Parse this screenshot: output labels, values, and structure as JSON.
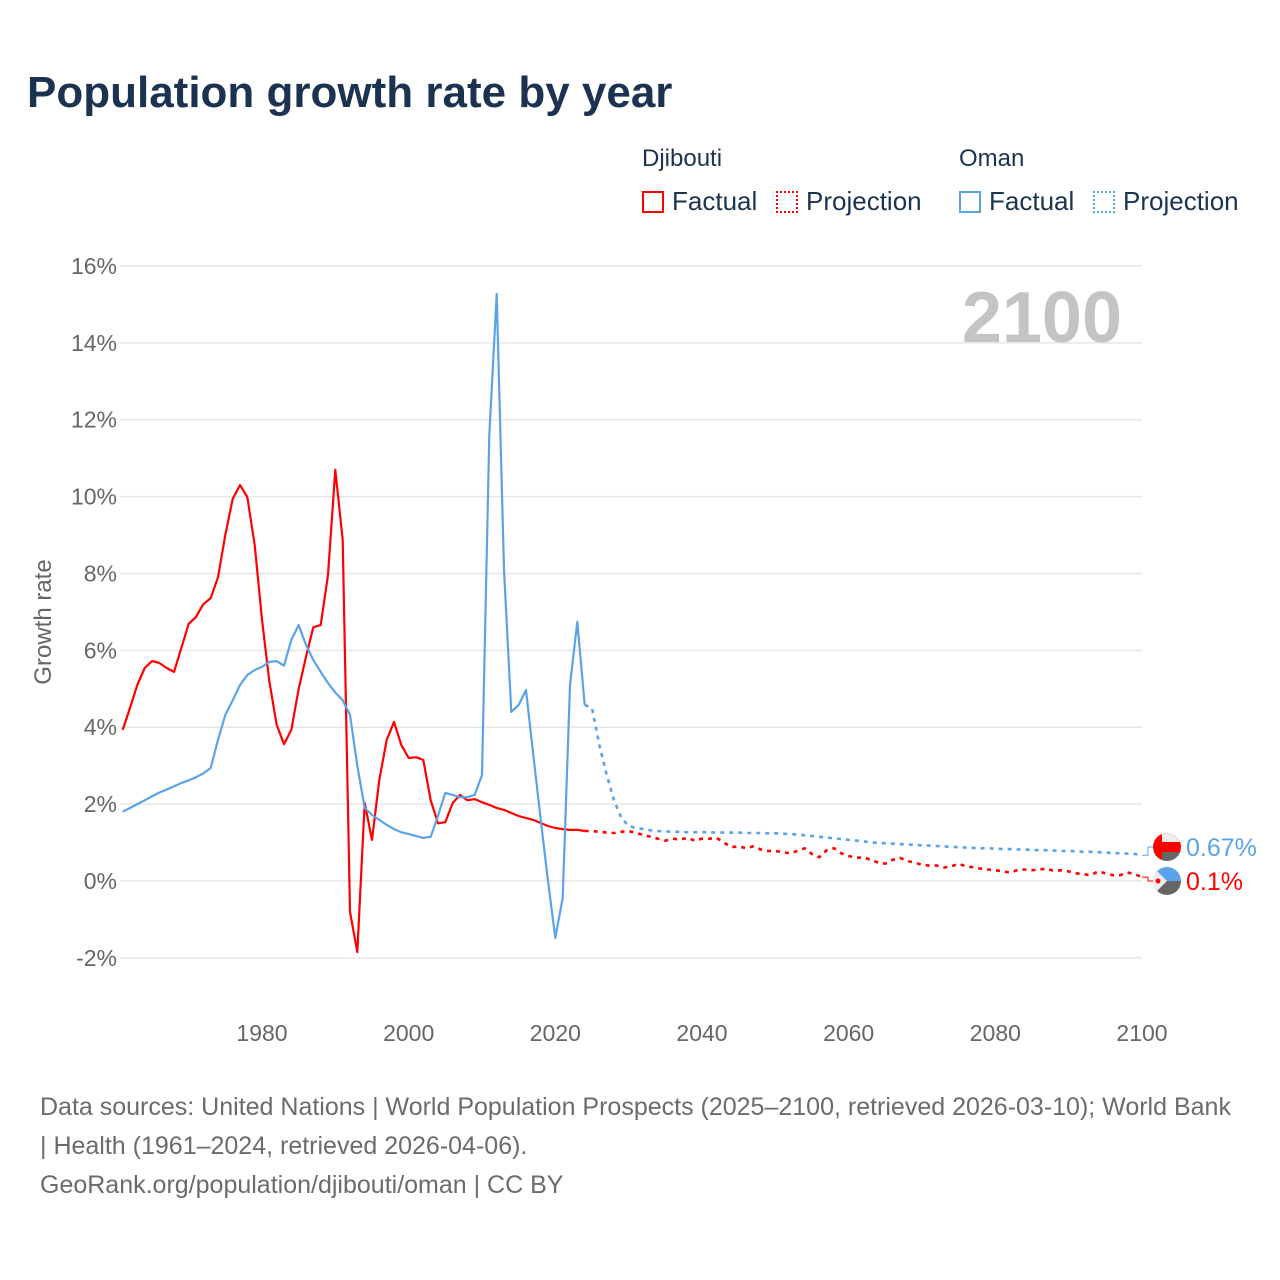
{
  "title": "Population growth rate by year",
  "legend": {
    "groups": [
      {
        "country": "Djibouti",
        "factual": "Factual",
        "projection": "Projection",
        "color": "#ff0000"
      },
      {
        "country": "Oman",
        "factual": "Factual",
        "projection": "Projection",
        "color": "#5ba3e8"
      }
    ]
  },
  "year_watermark": "2100",
  "footer": {
    "sources": "Data sources: United Nations | World Population Prospects (2025–2100, retrieved 2026-03-10); World Bank | Health (1961–2024, retrieved 2026-04-06).",
    "credit": "GeoRank.org/population/djibouti/oman | CC BY"
  },
  "chart_data": {
    "type": "line",
    "title": "Population growth rate by year",
    "xlabel": "",
    "ylabel": "Growth rate",
    "xlim": [
      1961,
      2100
    ],
    "ylim": [
      -2,
      16
    ],
    "x_ticks": [
      1980,
      2000,
      2020,
      2040,
      2060,
      2080,
      2100
    ],
    "y_ticks": [
      -2,
      0,
      2,
      4,
      6,
      8,
      10,
      12,
      14,
      16
    ],
    "y_tick_labels": [
      "-2%",
      "0%",
      "2%",
      "4%",
      "6%",
      "8%",
      "10%",
      "12%",
      "14%",
      "16%"
    ],
    "grid": true,
    "legend_position": "top-right",
    "series": [
      {
        "name": "Djibouti",
        "color": "#ff0000",
        "end_label": "0.1%",
        "factual_start": 1961,
        "factual": [
          3.93,
          4.5,
          5.1,
          5.54,
          5.72,
          5.67,
          5.54,
          5.44,
          6.06,
          6.69,
          6.87,
          7.2,
          7.36,
          7.9,
          9.0,
          9.94,
          10.3,
          9.99,
          8.74,
          6.8,
          5.2,
          4.06,
          3.56,
          3.93,
          5.0,
          5.83,
          6.6,
          6.66,
          7.96,
          10.7,
          8.87,
          -0.8,
          -1.85,
          2.03,
          1.07,
          2.63,
          3.67,
          4.14,
          3.54,
          3.2,
          3.22,
          3.15,
          2.1,
          1.5,
          1.53,
          2.03,
          2.24,
          2.1,
          2.13,
          2.05,
          1.98,
          1.9,
          1.85,
          1.77,
          1.69,
          1.64,
          1.59,
          1.51,
          1.43,
          1.38,
          1.35,
          1.33,
          1.33,
          1.3
        ],
        "projection_start": 2025,
        "projection": [
          1.3,
          1.28,
          1.26,
          1.25,
          1.28,
          1.3,
          1.25,
          1.2,
          1.15,
          1.1,
          1.05,
          1.1,
          1.08,
          1.12,
          1.05,
          1.1,
          1.1,
          1.12,
          1.0,
          0.88,
          0.9,
          0.85,
          0.9,
          0.82,
          0.78,
          0.78,
          0.75,
          0.72,
          0.78,
          0.85,
          0.7,
          0.62,
          0.8,
          0.85,
          0.72,
          0.65,
          0.6,
          0.62,
          0.55,
          0.48,
          0.45,
          0.55,
          0.6,
          0.52,
          0.48,
          0.42,
          0.4,
          0.4,
          0.35,
          0.38,
          0.45,
          0.38,
          0.36,
          0.32,
          0.3,
          0.28,
          0.25,
          0.22,
          0.28,
          0.3,
          0.28,
          0.3,
          0.32,
          0.26,
          0.28,
          0.25,
          0.2,
          0.18,
          0.15,
          0.25,
          0.2,
          0.15,
          0.15,
          0.22,
          0.18,
          0.1
        ]
      },
      {
        "name": "Oman",
        "color": "#5ba3e8",
        "end_label": "0.67%",
        "factual_start": 1961,
        "factual": [
          1.8,
          1.9,
          2.0,
          2.1,
          2.2,
          2.3,
          2.38,
          2.46,
          2.55,
          2.62,
          2.7,
          2.8,
          2.94,
          3.67,
          4.32,
          4.7,
          5.1,
          5.36,
          5.49,
          5.57,
          5.7,
          5.72,
          5.6,
          6.27,
          6.66,
          6.14,
          5.75,
          5.44,
          5.15,
          4.9,
          4.7,
          4.32,
          3.0,
          1.9,
          1.72,
          1.59,
          1.46,
          1.35,
          1.27,
          1.22,
          1.17,
          1.12,
          1.15,
          1.7,
          2.29,
          2.24,
          2.18,
          2.18,
          2.24,
          2.76,
          11.6,
          15.27,
          8.1,
          4.4,
          4.58,
          4.97,
          3.28,
          1.6,
          0.0,
          -1.48,
          -0.44,
          5.1,
          6.74,
          4.58
        ],
        "projection_start": 2025,
        "projection": [
          4.5,
          3.54,
          2.76,
          2.1,
          1.64,
          1.43,
          1.38,
          1.35,
          1.32,
          1.3,
          1.29,
          1.28,
          1.28,
          1.27,
          1.27,
          1.27,
          1.27,
          1.26,
          1.26,
          1.26,
          1.26,
          1.25,
          1.25,
          1.25,
          1.24,
          1.24,
          1.23,
          1.22,
          1.21,
          1.19,
          1.17,
          1.15,
          1.13,
          1.11,
          1.09,
          1.07,
          1.05,
          1.03,
          1.01,
          0.99,
          0.98,
          0.97,
          0.96,
          0.95,
          0.94,
          0.93,
          0.92,
          0.91,
          0.9,
          0.89,
          0.88,
          0.87,
          0.86,
          0.85,
          0.85,
          0.84,
          0.83,
          0.83,
          0.82,
          0.82,
          0.81,
          0.8,
          0.8,
          0.79,
          0.78,
          0.78,
          0.77,
          0.76,
          0.76,
          0.75,
          0.74,
          0.73,
          0.72,
          0.71,
          0.7,
          0.67
        ]
      }
    ]
  }
}
